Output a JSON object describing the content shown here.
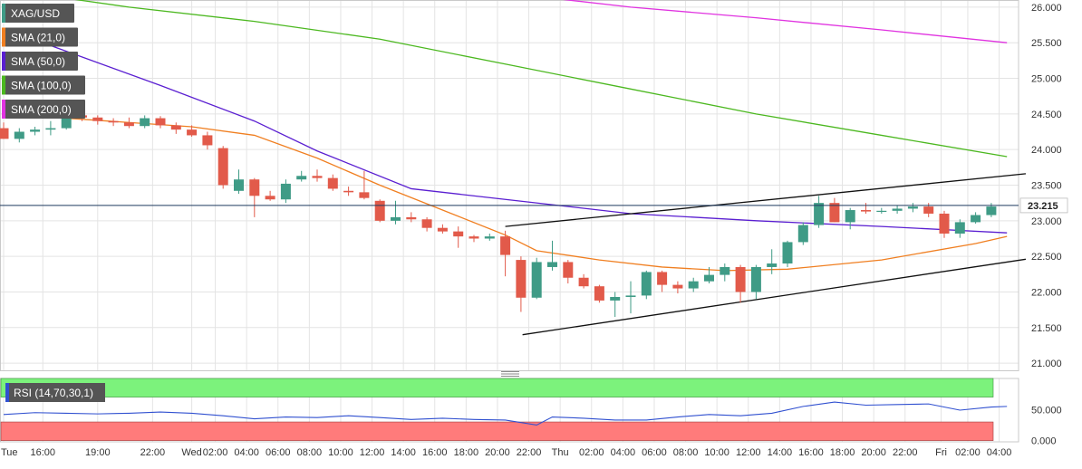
{
  "chart_data": [
    {
      "type": "candlestick",
      "symbol": "XAG/USD",
      "ylim": [
        20.9,
        26.1
      ],
      "y_ticks": [
        "26.000",
        "25.500",
        "25.000",
        "24.500",
        "24.000",
        "23.500",
        "23.000",
        "22.500",
        "22.000",
        "21.500",
        "21.000"
      ],
      "x_ticks": [
        "Tue",
        "16:00",
        "19:00",
        "22:00",
        "Wed",
        "02:00",
        "04:00",
        "06:00",
        "08:00",
        "10:00",
        "12:00",
        "14:00",
        "16:00",
        "18:00",
        "20:00",
        "22:00",
        "Thu",
        "02:00",
        "04:00",
        "06:00",
        "08:00",
        "10:00",
        "12:00",
        "14:00",
        "16:00",
        "18:00",
        "20:00",
        "22:00",
        "Fri",
        "02:00",
        "04:00"
      ],
      "x_tick_index": [
        0,
        2.5,
        6,
        9.5,
        12,
        13.5,
        15.5,
        17.5,
        19.5,
        21.5,
        23.5,
        25.5,
        27.5,
        29.5,
        31.5,
        33.5,
        35.5,
        37.5,
        39.5,
        41.5,
        43.5,
        45.5,
        47.5,
        49.5,
        51.5,
        53.5,
        55.5,
        57.5,
        59.8,
        61.5,
        63.5
      ],
      "last_price": "23.215",
      "last_price_value": 23.215,
      "candles": [
        [
          24.3,
          24.38,
          24.15,
          24.15
        ],
        [
          24.15,
          24.3,
          24.1,
          24.25
        ],
        [
          24.25,
          24.32,
          24.2,
          24.28
        ],
        [
          24.28,
          24.4,
          24.2,
          24.3
        ],
        [
          24.3,
          24.52,
          24.28,
          24.48
        ],
        [
          24.48,
          24.5,
          24.4,
          24.45
        ],
        [
          24.45,
          24.48,
          24.35,
          24.4
        ],
        [
          24.4,
          24.44,
          24.33,
          24.38
        ],
        [
          24.38,
          24.45,
          24.3,
          24.33
        ],
        [
          24.33,
          24.48,
          24.3,
          24.44
        ],
        [
          24.44,
          24.47,
          24.3,
          24.34
        ],
        [
          24.34,
          24.38,
          24.22,
          24.28
        ],
        [
          24.28,
          24.34,
          24.18,
          24.2
        ],
        [
          24.2,
          24.25,
          24.0,
          24.06
        ],
        [
          24.02,
          24.05,
          23.45,
          23.5
        ],
        [
          23.42,
          23.72,
          23.38,
          23.58
        ],
        [
          23.58,
          23.6,
          23.05,
          23.35
        ],
        [
          23.35,
          23.42,
          23.28,
          23.3
        ],
        [
          23.3,
          23.58,
          23.25,
          23.52
        ],
        [
          23.58,
          23.7,
          23.55,
          23.63
        ],
        [
          23.63,
          23.72,
          23.55,
          23.6
        ],
        [
          23.6,
          23.65,
          23.42,
          23.45
        ],
        [
          23.42,
          23.48,
          23.35,
          23.4
        ],
        [
          23.4,
          23.7,
          23.3,
          23.32
        ],
        [
          23.28,
          23.3,
          22.98,
          23.0
        ],
        [
          23.0,
          23.28,
          22.95,
          23.05
        ],
        [
          23.05,
          23.12,
          22.98,
          23.02
        ],
        [
          23.02,
          23.05,
          22.85,
          22.9
        ],
        [
          22.9,
          22.95,
          22.82,
          22.85
        ],
        [
          22.85,
          22.92,
          22.62,
          22.78
        ],
        [
          22.78,
          22.8,
          22.7,
          22.75
        ],
        [
          22.75,
          22.82,
          22.72,
          22.78
        ],
        [
          22.78,
          22.86,
          22.22,
          22.52
        ],
        [
          22.45,
          22.5,
          21.72,
          21.92
        ],
        [
          21.92,
          22.48,
          21.9,
          22.42
        ],
        [
          22.35,
          22.72,
          22.3,
          22.42
        ],
        [
          22.42,
          22.45,
          22.12,
          22.2
        ],
        [
          22.2,
          22.25,
          22.05,
          22.08
        ],
        [
          22.08,
          22.1,
          21.85,
          21.88
        ],
        [
          21.88,
          22.0,
          21.65,
          21.93
        ],
        [
          21.93,
          22.15,
          21.7,
          21.95
        ],
        [
          21.95,
          22.3,
          21.9,
          22.28
        ],
        [
          22.28,
          22.3,
          22.0,
          22.1
        ],
        [
          22.1,
          22.15,
          21.98,
          22.05
        ],
        [
          22.05,
          22.2,
          22.0,
          22.15
        ],
        [
          22.15,
          22.35,
          22.12,
          22.24
        ],
        [
          22.24,
          22.4,
          22.15,
          22.35
        ],
        [
          22.35,
          22.38,
          21.85,
          22.0
        ],
        [
          22.0,
          22.38,
          21.9,
          22.35
        ],
        [
          22.35,
          22.6,
          22.25,
          22.4
        ],
        [
          22.4,
          22.72,
          22.35,
          22.7
        ],
        [
          22.7,
          22.98,
          22.66,
          22.94
        ],
        [
          22.94,
          23.35,
          22.9,
          23.25
        ],
        [
          23.25,
          23.32,
          22.98,
          22.98
        ],
        [
          22.98,
          23.18,
          22.88,
          23.15
        ],
        [
          23.15,
          23.25,
          23.1,
          23.13
        ],
        [
          23.13,
          23.18,
          23.1,
          23.14
        ],
        [
          23.14,
          23.22,
          23.1,
          23.17
        ],
        [
          23.17,
          23.25,
          23.12,
          23.2
        ],
        [
          23.2,
          23.25,
          23.05,
          23.1
        ],
        [
          23.1,
          23.14,
          22.76,
          22.82
        ],
        [
          22.82,
          23.02,
          22.76,
          22.98
        ],
        [
          22.98,
          23.12,
          22.96,
          23.08
        ],
        [
          23.08,
          23.25,
          23.05,
          23.2
        ]
      ],
      "series": [
        {
          "name": "SMA (21,0)",
          "color": "#f07f21",
          "x": [
            0,
            12,
            16,
            20,
            24,
            28,
            32,
            34,
            38,
            42,
            46,
            50,
            56,
            62,
            64
          ],
          "y": [
            24.5,
            24.32,
            24.2,
            23.88,
            23.5,
            23.15,
            22.8,
            22.58,
            22.45,
            22.35,
            22.3,
            22.32,
            22.45,
            22.68,
            22.78
          ]
        },
        {
          "name": "SMA (50,0)",
          "color": "#5a1fd1",
          "x": [
            0,
            4,
            10,
            16,
            20,
            26,
            32,
            40,
            48,
            56,
            64
          ],
          "y": [
            25.7,
            25.38,
            24.9,
            24.4,
            23.98,
            23.45,
            23.3,
            23.1,
            23.0,
            22.92,
            22.83
          ]
        },
        {
          "name": "SMA (100,0)",
          "color": "#4cb820",
          "x": [
            0,
            8,
            16,
            24,
            32,
            40,
            48,
            56,
            64
          ],
          "y": [
            26.25,
            26.0,
            25.8,
            25.55,
            25.2,
            24.85,
            24.5,
            24.2,
            23.9
          ]
        },
        {
          "name": "SMA (200,0)",
          "color": "#e033e0",
          "x": [
            32,
            40,
            48,
            56,
            64
          ],
          "y": [
            26.2,
            26.0,
            25.85,
            25.68,
            25.5
          ]
        }
      ],
      "trendlines": [
        {
          "x": [
            32,
            65.2
          ],
          "y": [
            22.92,
            23.66
          ]
        },
        {
          "x": [
            33.1,
            65.2
          ],
          "y": [
            21.4,
            22.46
          ]
        }
      ]
    },
    {
      "type": "line",
      "name": "RSI (14,70,30,1)",
      "ylim": [
        -2,
        100
      ],
      "y_ticks": [
        "50.000",
        "0.000"
      ],
      "overbought_band": [
        70,
        100
      ],
      "oversold_band": [
        0,
        30
      ],
      "band_colors": {
        "overbought": "#7cf27c",
        "oversold": "#ff7b7b"
      },
      "line_color": "#3050d0",
      "x": [
        0,
        2,
        4,
        6,
        8,
        10,
        12,
        14,
        16,
        18,
        20,
        22,
        24,
        26,
        28,
        30,
        32,
        34,
        35,
        37,
        39,
        41,
        43,
        45,
        47,
        49,
        51,
        53,
        55,
        57,
        59,
        61,
        63,
        64
      ],
      "y": [
        42,
        45,
        44,
        43,
        44,
        46,
        44,
        40,
        35,
        38,
        37,
        40,
        37,
        34,
        36,
        34,
        33,
        25,
        38,
        36,
        33,
        33,
        38,
        42,
        40,
        44,
        55,
        62,
        57,
        58,
        59,
        49,
        54,
        55
      ]
    }
  ],
  "legend": [
    "XAG/USD",
    "SMA (21,0)",
    "SMA (50,0)",
    "SMA (100,0)",
    "SMA (200,0)"
  ],
  "colors": {
    "bull": "#3f9b86",
    "bear": "#e25a4a",
    "price_line": "#1e3a5f",
    "grid": "#e4e4e4",
    "legend_bg": "#555555"
  }
}
